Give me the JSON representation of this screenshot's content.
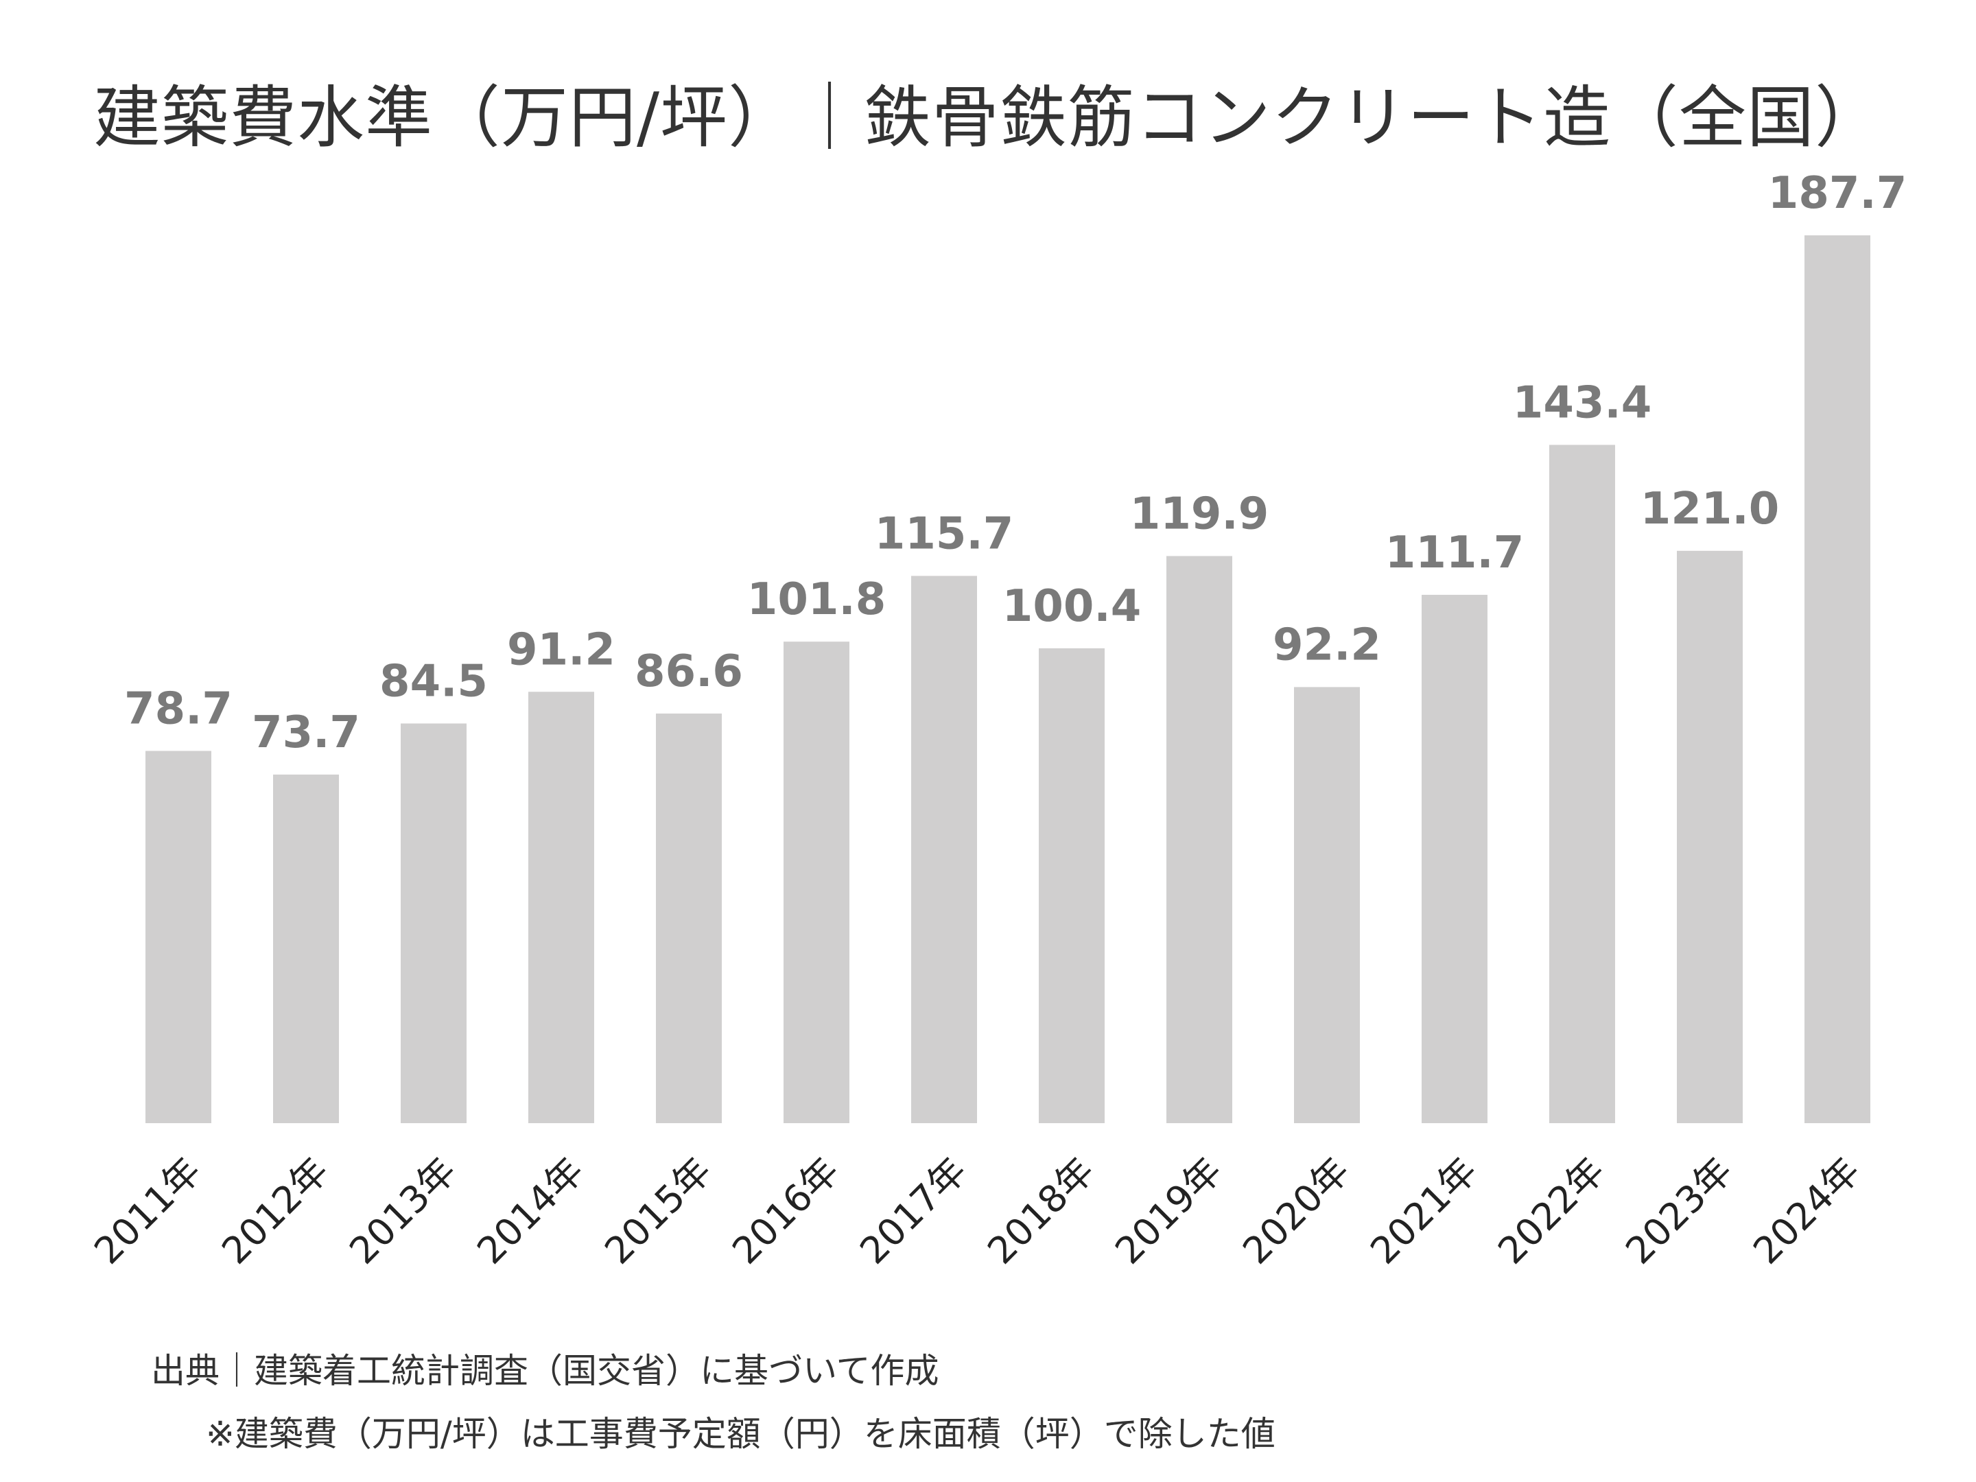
{
  "chart_data": {
    "type": "bar",
    "title": "建築費水準（万円/坪）｜鉄骨鉄筋コンクリート造（全国）",
    "categories": [
      "2011年",
      "2012年",
      "2013年",
      "2014年",
      "2015年",
      "2016年",
      "2017年",
      "2018年",
      "2019年",
      "2020年",
      "2021年",
      "2022年",
      "2023年",
      "2024年"
    ],
    "values": [
      78.7,
      73.7,
      84.5,
      91.2,
      86.6,
      101.8,
      115.7,
      100.4,
      119.9,
      92.2,
      111.7,
      143.4,
      121.0,
      187.7
    ],
    "value_labels": [
      "78.7",
      "73.7",
      "84.5",
      "91.2",
      "86.6",
      "101.8",
      "115.7",
      "100.4",
      "119.9",
      "92.2",
      "111.7",
      "143.4",
      "121.0",
      "187.7"
    ],
    "xlabel": "",
    "ylabel": "",
    "ylim": [
      0,
      187.7
    ],
    "grid": false,
    "legend": "none",
    "bar_color": "#d0cfcf",
    "value_label_color": "#7a7a7a",
    "tick_label_color": "#222222"
  },
  "notes": {
    "source": "出典｜建築着工統計調査（国交省）に基づいて作成",
    "definition": "※建築費（万円/坪）は工事費予定額（円）を床面積（坪）で除した値"
  }
}
